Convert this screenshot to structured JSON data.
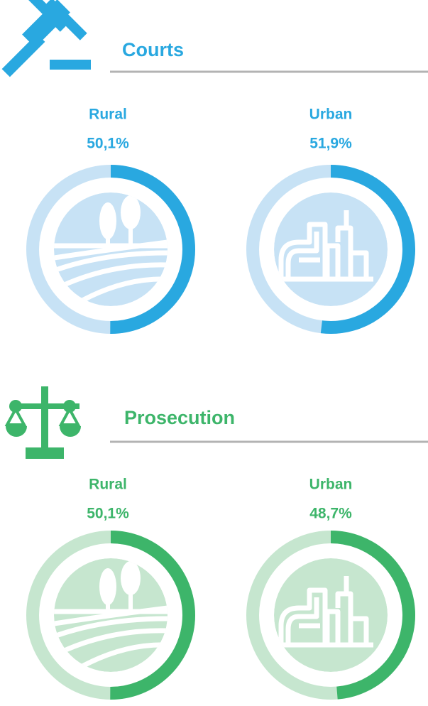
{
  "sections": [
    {
      "title": "Courts",
      "color": "#29a8e0"
    },
    {
      "title": "Prosecution",
      "color": "#3db56a"
    }
  ],
  "chart_data": [
    {
      "type": "donut",
      "title": "Rural",
      "values": [
        50.1
      ],
      "value_labels": [
        "50,1%"
      ],
      "color": "#29a8e0",
      "track_color": "#c7e2f5"
    },
    {
      "type": "donut",
      "title": "Urban",
      "values": [
        51.9
      ],
      "value_labels": [
        "51,9%"
      ],
      "color": "#29a8e0",
      "track_color": "#c7e2f5"
    },
    {
      "type": "donut",
      "title": "Rural",
      "values": [
        50.1
      ],
      "value_labels": [
        "50,1%"
      ],
      "color": "#3db56a",
      "track_color": "#c6e6cf"
    },
    {
      "type": "donut",
      "title": "Urban",
      "values": [
        48.7
      ],
      "value_labels": [
        "48,7%"
      ],
      "color": "#3db56a",
      "track_color": "#c6e6cf"
    }
  ]
}
